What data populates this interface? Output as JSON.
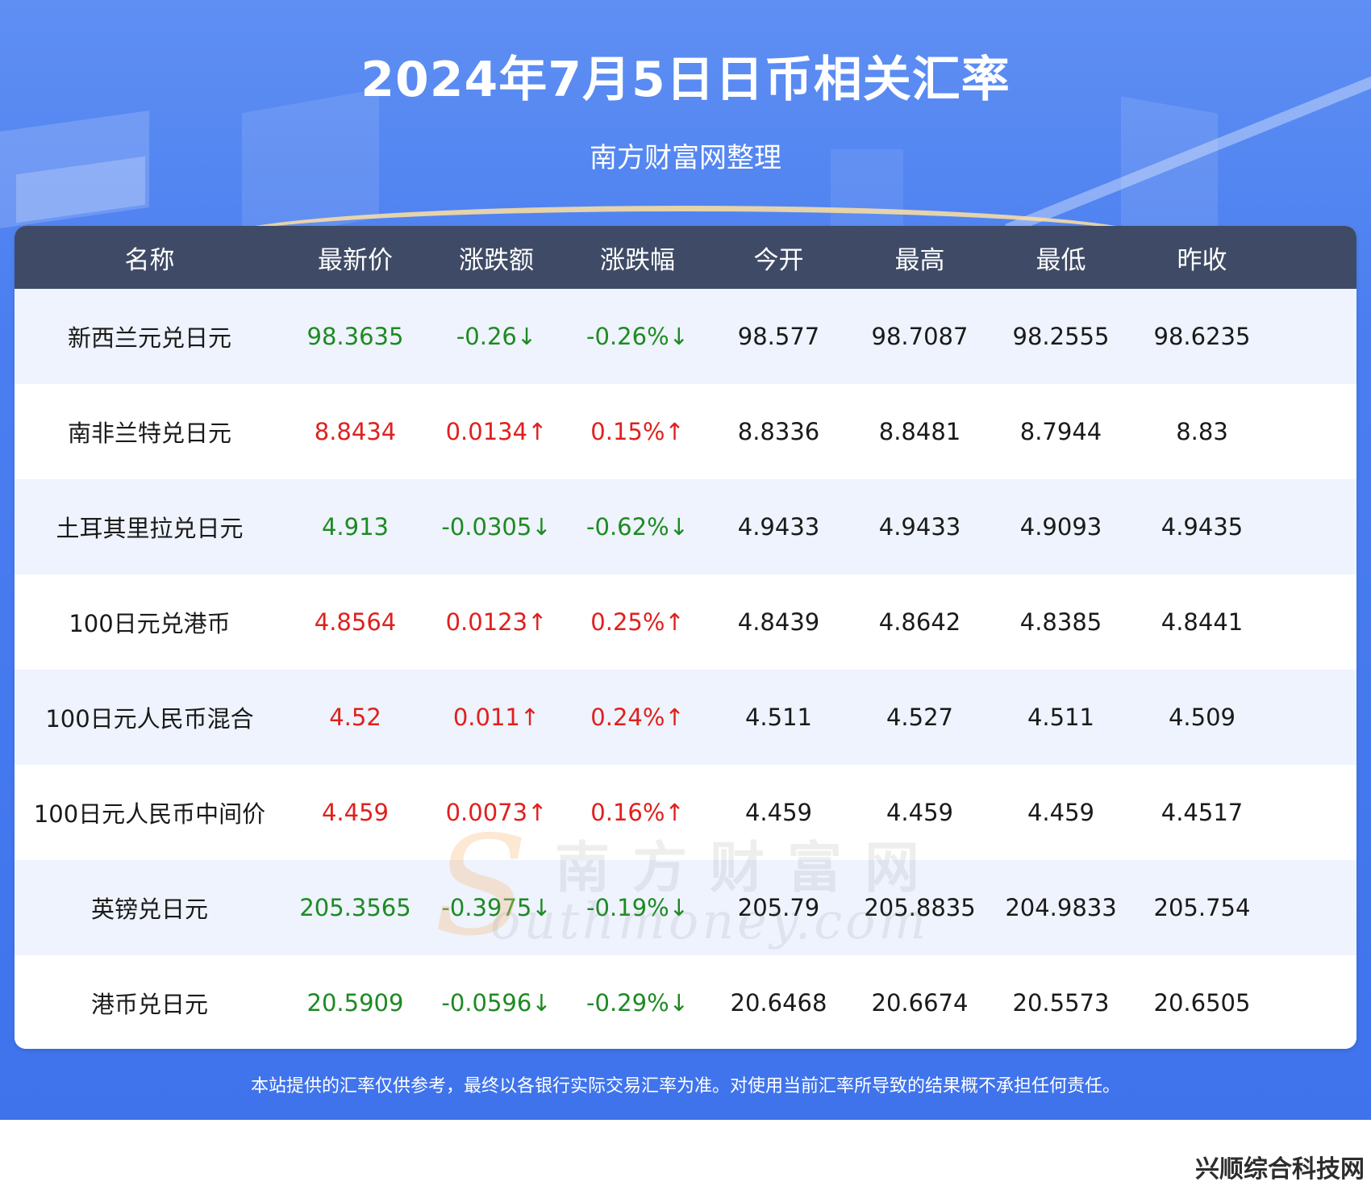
{
  "header": {
    "title": "2024年7月5日日币相关汇率",
    "subtitle": "南方财富网整理"
  },
  "table": {
    "columns": [
      "名称",
      "最新价",
      "涨跌额",
      "涨跌幅",
      "今开",
      "最高",
      "最低",
      "昨收"
    ],
    "rows": [
      {
        "name": "新西兰元兑日元",
        "latest": "98.3635",
        "change": "-0.26↓",
        "change_pct": "-0.26%↓",
        "open": "98.577",
        "high": "98.7087",
        "low": "98.2555",
        "prev_close": "98.6235",
        "trend": "down"
      },
      {
        "name": "南非兰特兑日元",
        "latest": "8.8434",
        "change": "0.0134↑",
        "change_pct": "0.15%↑",
        "open": "8.8336",
        "high": "8.8481",
        "low": "8.7944",
        "prev_close": "8.83",
        "trend": "up"
      },
      {
        "name": "土耳其里拉兑日元",
        "latest": "4.913",
        "change": "-0.0305↓",
        "change_pct": "-0.62%↓",
        "open": "4.9433",
        "high": "4.9433",
        "low": "4.9093",
        "prev_close": "4.9435",
        "trend": "down"
      },
      {
        "name": "100日元兑港币",
        "latest": "4.8564",
        "change": "0.0123↑",
        "change_pct": "0.25%↑",
        "open": "4.8439",
        "high": "4.8642",
        "low": "4.8385",
        "prev_close": "4.8441",
        "trend": "up"
      },
      {
        "name": "100日元人民币混合",
        "latest": "4.52",
        "change": "0.011↑",
        "change_pct": "0.24%↑",
        "open": "4.511",
        "high": "4.527",
        "low": "4.511",
        "prev_close": "4.509",
        "trend": "up"
      },
      {
        "name": "100日元人民币中间价",
        "latest": "4.459",
        "change": "0.0073↑",
        "change_pct": "0.16%↑",
        "open": "4.459",
        "high": "4.459",
        "low": "4.459",
        "prev_close": "4.4517",
        "trend": "up"
      },
      {
        "name": "英镑兑日元",
        "latest": "205.3565",
        "change": "-0.3975↓",
        "change_pct": "-0.19%↓",
        "open": "205.79",
        "high": "205.8835",
        "low": "204.9833",
        "prev_close": "205.754",
        "trend": "down"
      },
      {
        "name": "港币兑日元",
        "latest": "20.5909",
        "change": "-0.0596↓",
        "change_pct": "-0.29%↓",
        "open": "20.6468",
        "high": "20.6674",
        "low": "20.5573",
        "prev_close": "20.6505",
        "trend": "down"
      }
    ]
  },
  "watermark": {
    "chinese": "南方财富网",
    "initial": "S",
    "english": "outhmoney.com"
  },
  "footer": {
    "disclaimer": "本站提供的汇率仅供参考，最终以各银行实际交易汇率为准。对使用当前汇率所导致的结果概不承担任何责任。",
    "site_badge": "兴顺综合科技网"
  },
  "colors": {
    "up": "#e0201e",
    "down": "#1e8a23",
    "header_bg": "#3f4b66",
    "banner": "#4a7ef0"
  }
}
